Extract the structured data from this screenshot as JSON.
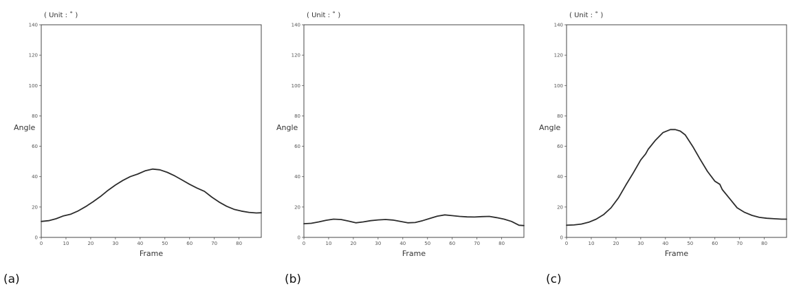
{
  "chart_data": [
    {
      "type": "line",
      "panel_label": "(a)",
      "unit_note": "( Unit : ˚ )",
      "xlabel": "Frame",
      "ylabel": "Angle",
      "xlim": [
        0,
        89
      ],
      "ylim": [
        0,
        140
      ],
      "xticks": [
        0,
        10,
        20,
        30,
        40,
        50,
        60,
        70,
        80
      ],
      "yticks": [
        0,
        20,
        40,
        60,
        80,
        100,
        120,
        140
      ],
      "x": [
        0,
        3,
        6,
        9,
        12,
        15,
        18,
        21,
        24,
        27,
        30,
        33,
        36,
        39,
        42,
        45,
        48,
        51,
        54,
        57,
        60,
        63,
        66,
        69,
        72,
        75,
        78,
        81,
        84,
        87,
        89
      ],
      "series": [
        {
          "values": [
            10.5,
            11,
            12.3,
            14.2,
            15.3,
            17.5,
            20.3,
            23.5,
            27,
            31,
            34.5,
            37.5,
            40,
            41.7,
            43.8,
            45,
            44.5,
            42.8,
            40.5,
            37.8,
            35,
            32.5,
            30.3,
            26.5,
            23.2,
            20.5,
            18.5,
            17.3,
            16.5,
            16.1,
            16.2
          ]
        }
      ]
    },
    {
      "type": "line",
      "panel_label": "(b)",
      "unit_note": "( Unit : ˚ )",
      "xlabel": "Frame",
      "ylabel": "Angle",
      "xlim": [
        0,
        89
      ],
      "ylim": [
        0,
        140
      ],
      "xticks": [
        0,
        10,
        20,
        30,
        40,
        50,
        60,
        70,
        80
      ],
      "yticks": [
        0,
        20,
        40,
        60,
        80,
        100,
        120,
        140
      ],
      "x": [
        0,
        3,
        6,
        9,
        12,
        15,
        18,
        21,
        24,
        27,
        30,
        33,
        36,
        39,
        42,
        45,
        48,
        51,
        54,
        57,
        60,
        63,
        66,
        69,
        72,
        75,
        78,
        81,
        84,
        87,
        89
      ],
      "series": [
        {
          "values": [
            9,
            9.3,
            10.2,
            11.3,
            12,
            11.8,
            10.8,
            9.6,
            10.2,
            11,
            11.5,
            11.8,
            11.4,
            10.5,
            9.6,
            9.8,
            11,
            12.5,
            14,
            14.8,
            14.3,
            13.8,
            13.5,
            13.4,
            13.7,
            13.8,
            13,
            12,
            10.5,
            8,
            7.8
          ]
        }
      ]
    },
    {
      "type": "line",
      "panel_label": "(c)",
      "unit_note": "( Unit : ˚ )",
      "xlabel": "Frame",
      "ylabel": "Angle",
      "xlim": [
        0,
        89
      ],
      "ylim": [
        0,
        140
      ],
      "xticks": [
        0,
        10,
        20,
        30,
        40,
        50,
        60,
        70,
        80
      ],
      "yticks": [
        0,
        20,
        40,
        60,
        80,
        100,
        120,
        140
      ],
      "x": [
        0,
        3,
        6,
        9,
        12,
        15,
        18,
        21,
        24,
        27,
        30,
        32,
        33,
        36,
        39,
        42,
        44,
        46,
        48,
        51,
        54,
        57,
        60,
        62,
        63,
        66,
        69,
        72,
        75,
        78,
        81,
        84,
        87,
        89
      ],
      "series": [
        {
          "values": [
            8,
            8.2,
            8.8,
            10,
            12,
            15,
            19.5,
            26,
            34.5,
            42.5,
            51,
            55,
            58,
            64,
            69,
            71,
            71,
            70,
            67.5,
            60,
            51.5,
            43.5,
            37,
            35,
            31.5,
            25.5,
            19.5,
            16.5,
            14.5,
            13.2,
            12.6,
            12.3,
            12,
            12
          ]
        }
      ]
    }
  ],
  "line_color": "#2b2b2b"
}
